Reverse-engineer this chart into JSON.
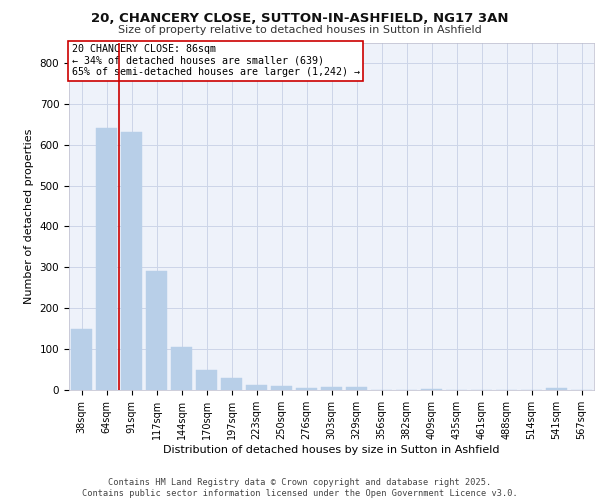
{
  "title": "20, CHANCERY CLOSE, SUTTON-IN-ASHFIELD, NG17 3AN",
  "subtitle": "Size of property relative to detached houses in Sutton in Ashfield",
  "xlabel": "Distribution of detached houses by size in Sutton in Ashfield",
  "ylabel": "Number of detached properties",
  "categories": [
    "38sqm",
    "64sqm",
    "91sqm",
    "117sqm",
    "144sqm",
    "170sqm",
    "197sqm",
    "223sqm",
    "250sqm",
    "276sqm",
    "303sqm",
    "329sqm",
    "356sqm",
    "382sqm",
    "409sqm",
    "435sqm",
    "461sqm",
    "488sqm",
    "514sqm",
    "541sqm",
    "567sqm"
  ],
  "values": [
    150,
    640,
    630,
    290,
    105,
    48,
    30,
    12,
    10,
    5,
    8,
    8,
    0,
    0,
    3,
    0,
    0,
    0,
    0,
    5,
    0
  ],
  "bar_color": "#b8cfe8",
  "bar_edge_color": "#b8cfe8",
  "grid_color": "#ccd5e8",
  "bg_color": "#eef2fa",
  "vline_color": "#cc0000",
  "vline_pos": 1.5,
  "annotation_text": "20 CHANCERY CLOSE: 86sqm\n← 34% of detached houses are smaller (639)\n65% of semi-detached houses are larger (1,242) →",
  "annotation_box_color": "#ffffff",
  "annotation_box_edge": "#cc0000",
  "footer": "Contains HM Land Registry data © Crown copyright and database right 2025.\nContains public sector information licensed under the Open Government Licence v3.0.",
  "ylim": [
    0,
    850
  ],
  "yticks": [
    0,
    100,
    200,
    300,
    400,
    500,
    600,
    700,
    800
  ]
}
